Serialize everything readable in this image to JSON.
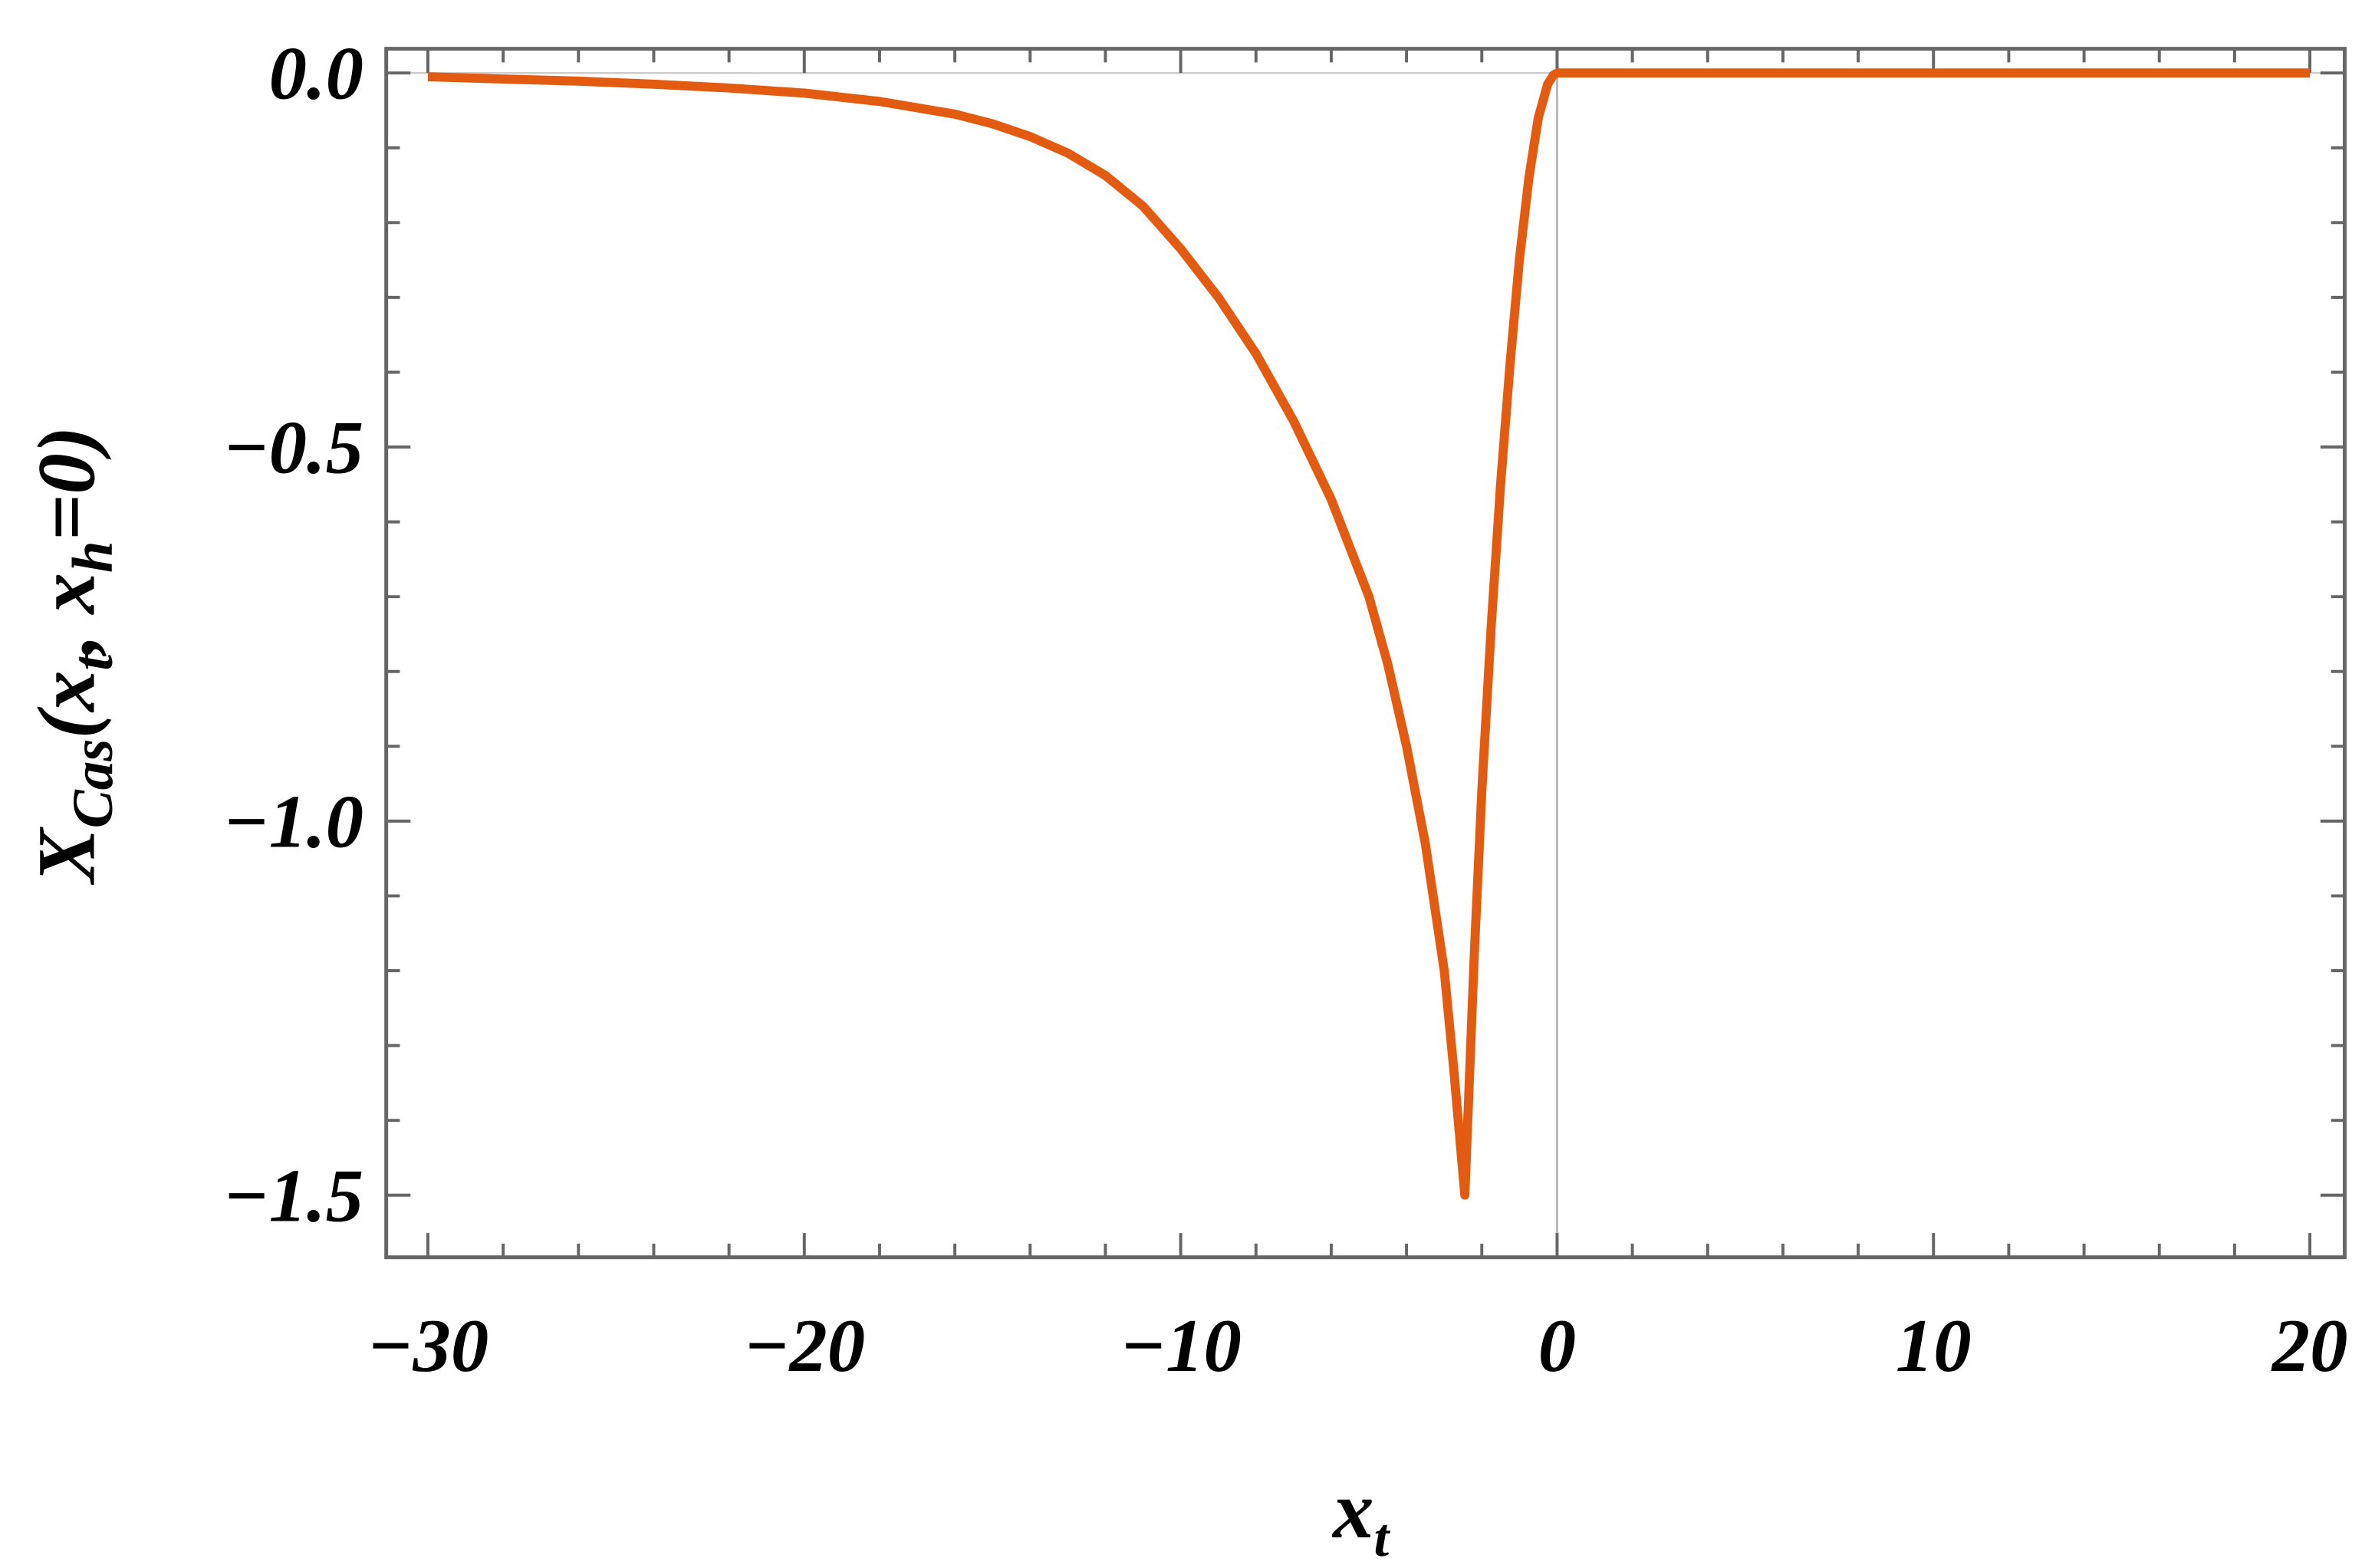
{
  "chart_data": {
    "type": "line",
    "xlabel": {
      "main": "x",
      "sub": "t"
    },
    "ylabel": {
      "main": "X",
      "sub": "Cas",
      "mid": "(x",
      "sub2": "t",
      "mid2": ", x",
      "sub3": "h",
      "end": "=0)"
    },
    "xlim": [
      -31,
      21
    ],
    "ylim": [
      -1.585,
      0.03
    ],
    "x_ticks": [
      -30,
      -20,
      -10,
      0,
      10,
      20
    ],
    "x_tick_labels": [
      "−30",
      "−20",
      "−10",
      "0",
      "10",
      "20"
    ],
    "y_ticks": [
      0.0,
      -0.5,
      -1.0,
      -1.5
    ],
    "y_tick_labels": [
      "0.0",
      "−0.5",
      "−1.0",
      "−1.5"
    ],
    "grid": false,
    "colors": {
      "series": "#e35b10",
      "frame": "#666666",
      "zero_line": "#aaaaaa"
    },
    "series": [
      {
        "x": [
          -30,
          -28,
          -26,
          -24,
          -22,
          -20,
          -18,
          -16,
          -15,
          -14,
          -13,
          -12,
          -11,
          -10,
          -9,
          -8,
          -7,
          -6,
          -5,
          -4.5,
          -4,
          -3.5,
          -3,
          -2.75,
          -2.45,
          -2.2,
          -2.0,
          -1.75,
          -1.5,
          -1.25,
          -1.0,
          -0.75,
          -0.5,
          -0.25,
          -0.1,
          0,
          5,
          10,
          15,
          20
        ],
        "y": [
          -0.005,
          -0.008,
          -0.011,
          -0.015,
          -0.02,
          -0.027,
          -0.038,
          -0.055,
          -0.068,
          -0.085,
          -0.107,
          -0.137,
          -0.178,
          -0.235,
          -0.3,
          -0.375,
          -0.465,
          -0.57,
          -0.7,
          -0.79,
          -0.9,
          -1.03,
          -1.2,
          -1.33,
          -1.5,
          -1.18,
          -0.96,
          -0.74,
          -0.55,
          -0.39,
          -0.25,
          -0.14,
          -0.06,
          -0.015,
          -0.003,
          0.0,
          0.0,
          0.0,
          0.0,
          0.0
        ]
      }
    ]
  }
}
